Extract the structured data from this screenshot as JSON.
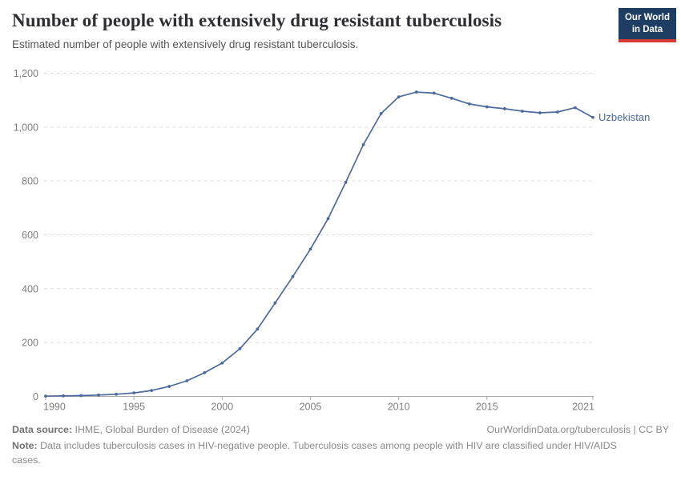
{
  "header": {
    "title": "Number of people with extensively drug resistant tuberculosis",
    "subtitle": "Estimated number of people with extensively drug resistant tuberculosis.",
    "logo": {
      "line1": "Our World",
      "line2": "in Data",
      "bg_color": "#1d3d63",
      "accent_color": "#d73a32"
    }
  },
  "chart_data": {
    "type": "line",
    "title": "Number of people with extensively drug resistant tuberculosis",
    "entity": "Uzbekistan",
    "x": [
      1990,
      1991,
      1992,
      1993,
      1994,
      1995,
      1996,
      1997,
      1998,
      1999,
      2000,
      2001,
      2002,
      2003,
      2004,
      2005,
      2006,
      2007,
      2008,
      2009,
      2010,
      2011,
      2012,
      2013,
      2014,
      2015,
      2016,
      2017,
      2018,
      2019,
      2020,
      2021
    ],
    "series": [
      {
        "name": "Uzbekistan",
        "color": "#4c6a9c",
        "values": [
          1,
          2,
          3,
          5,
          8,
          13,
          22,
          37,
          58,
          88,
          124,
          177,
          250,
          347,
          445,
          547,
          660,
          795,
          935,
          1050,
          1112,
          1130,
          1126,
          1107,
          1086,
          1075,
          1068,
          1059,
          1053,
          1056,
          1072,
          1036
        ]
      }
    ],
    "x_ticks": [
      1990,
      1995,
      2000,
      2005,
      2010,
      2015,
      2021
    ],
    "y_ticks": [
      0,
      200,
      400,
      600,
      800,
      1000,
      1200
    ],
    "xlim": [
      1990,
      2021
    ],
    "ylim": [
      0,
      1200
    ],
    "grid": "horizontal-dashed",
    "legend_position": "end-of-line-label",
    "end_label": "Uzbekistan",
    "colors": {
      "grid": "#dcdcdc",
      "axis": "#a8a8a8",
      "tick_label": "#7e7e7e"
    }
  },
  "footer": {
    "source_label": "Data source:",
    "source_text": " IHME, Global Burden of Disease (2024)",
    "attribution": "OurWorldinData.org/tuberculosis | CC BY",
    "note_label": "Note:",
    "note_text": " Data includes tuberculosis cases in HIV-negative people. Tuberculosis cases among people with HIV are classified under HIV/AIDS cases."
  }
}
